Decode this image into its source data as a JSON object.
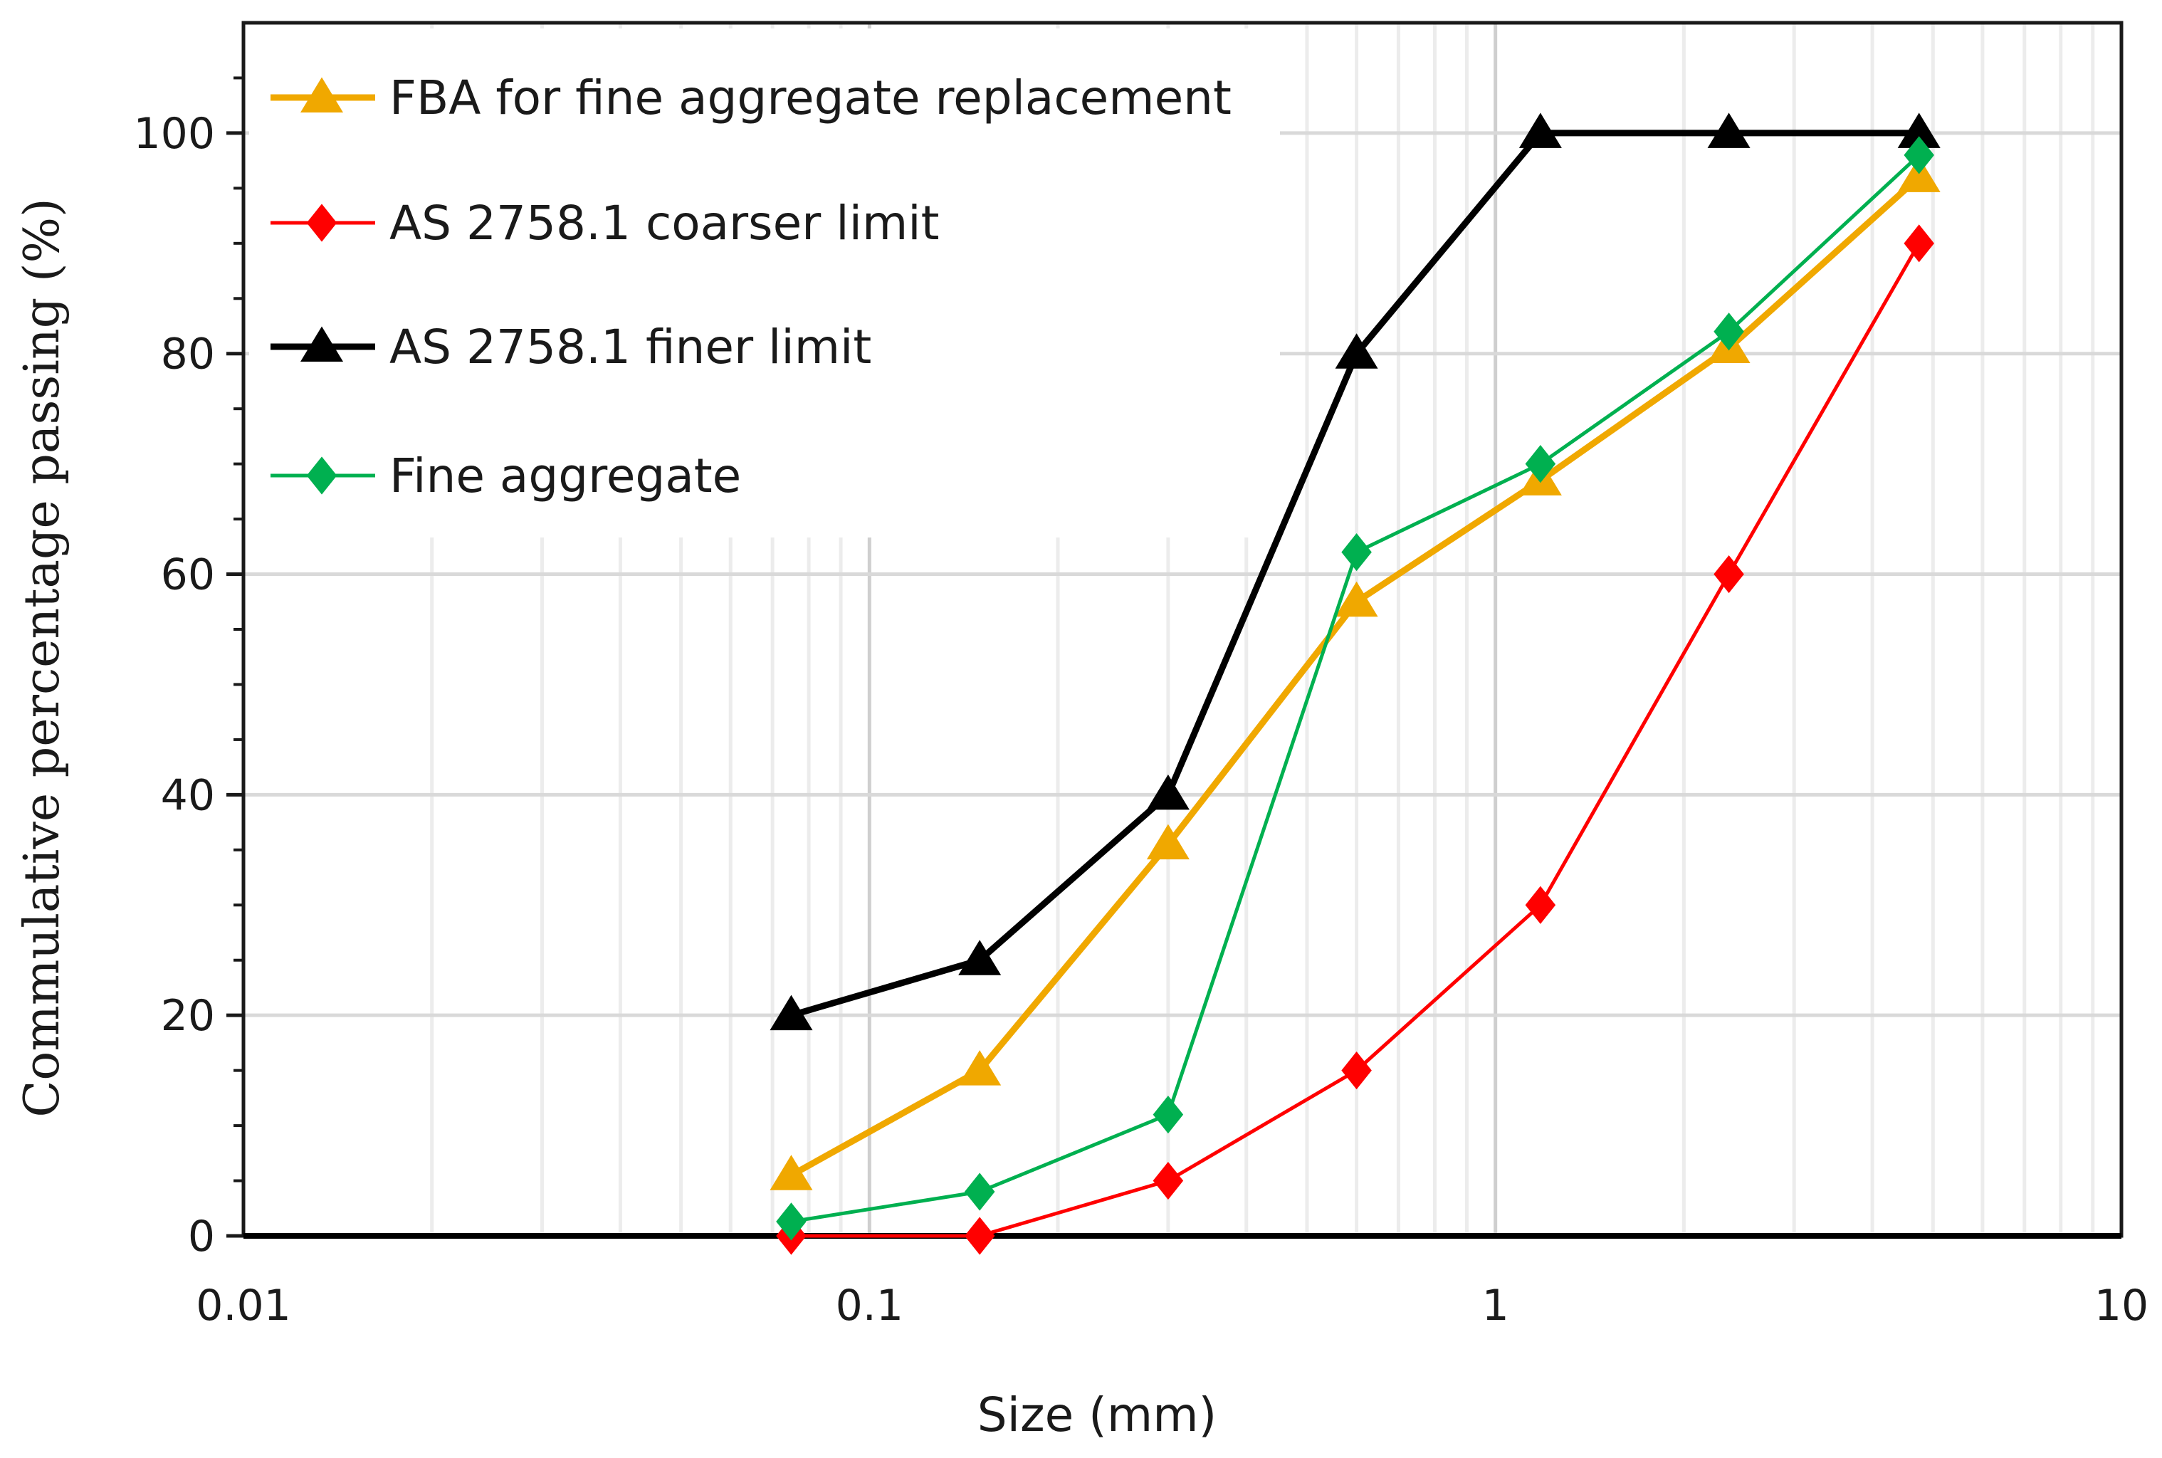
{
  "chart_data": {
    "type": "line",
    "title": "",
    "xlabel": "Size (mm)",
    "ylabel": "Commulative percentage passing (%)",
    "xscale": "log",
    "xlim": [
      0.01,
      10
    ],
    "ylim": [
      0,
      110
    ],
    "xticks": [
      {
        "value": 0.01,
        "label": "0.01"
      },
      {
        "value": 0.1,
        "label": "0.1"
      },
      {
        "value": 1,
        "label": "1"
      },
      {
        "value": 10,
        "label": "10"
      }
    ],
    "yticks": [
      {
        "value": 0,
        "label": "0"
      },
      {
        "value": 20,
        "label": "20"
      },
      {
        "value": 40,
        "label": "40"
      },
      {
        "value": 60,
        "label": "60"
      },
      {
        "value": 80,
        "label": "80"
      },
      {
        "value": 100,
        "label": "100"
      }
    ],
    "grid": true,
    "legend_position": "top-left",
    "series": [
      {
        "name": "FBA for fine aggregate replacement",
        "color": "#f0a800",
        "marker": "triangle",
        "x": [
          0.075,
          0.15,
          0.3,
          0.6,
          1.18,
          2.36,
          4.75
        ],
        "y": [
          5.5,
          15,
          35.5,
          57.5,
          68.5,
          80.5,
          96
        ]
      },
      {
        "name": "AS 2758.1 coarser limit",
        "color": "#ff0000",
        "marker": "diamond",
        "x": [
          0.075,
          0.15,
          0.3,
          0.6,
          1.18,
          2.36,
          4.75
        ],
        "y": [
          0,
          0,
          5,
          15,
          30,
          60,
          90
        ]
      },
      {
        "name": "AS 2758.1 finer limit",
        "color": "#000000",
        "marker": "triangle",
        "x": [
          0.075,
          0.15,
          0.3,
          0.6,
          1.18,
          2.36,
          4.75
        ],
        "y": [
          20,
          25,
          40,
          80,
          100,
          100,
          100
        ]
      },
      {
        "name": "Fine aggregate",
        "color": "#00b050",
        "marker": "diamond",
        "x": [
          0.075,
          0.15,
          0.3,
          0.6,
          1.18,
          2.36,
          4.75
        ],
        "y": [
          1.3,
          4,
          11,
          62,
          70,
          82,
          98
        ]
      }
    ]
  }
}
